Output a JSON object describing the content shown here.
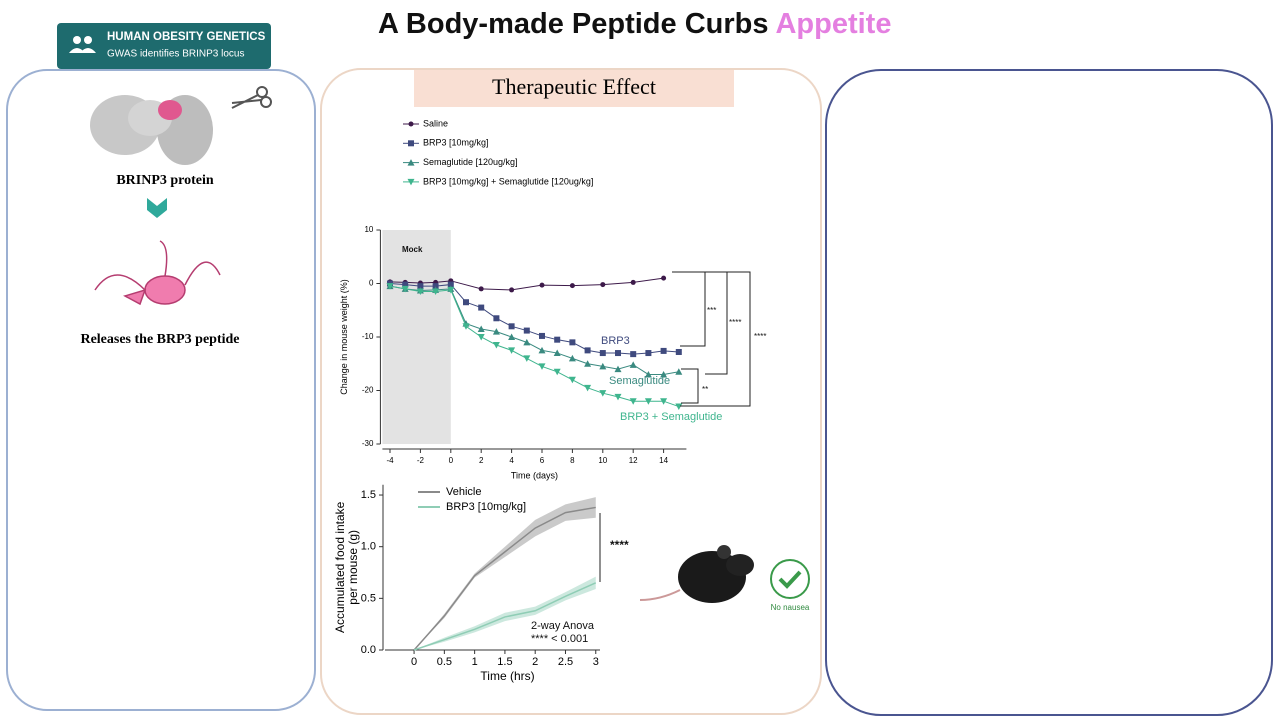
{
  "header": {
    "title": "A Body-made Peptide Curbs",
    "title_highlight": "Appetite"
  },
  "badge": {
    "title": "HUMAN OBESITY GENETICS",
    "subtitle": "GWAS identifies BRINP3 locus"
  },
  "left_panel": {
    "protein_label": "BRINP3 protein",
    "peptide_label": "Releases the BRP3 peptide"
  },
  "middle_panel": {
    "title": "Therapeutic Effect",
    "side_note": "No nausea"
  },
  "chart_data": [
    {
      "type": "line",
      "x_label": "Time (days)",
      "y_label": "Change in mouse weight (%)",
      "xlim": [
        -4.5,
        15.5
      ],
      "ylim": [
        -30,
        10
      ],
      "xticks": [
        -4,
        -2,
        0,
        2,
        4,
        6,
        8,
        10,
        12,
        14
      ],
      "yticks": [
        10,
        0,
        -10,
        -20,
        -30
      ],
      "shaded_range": [
        -4.5,
        0
      ],
      "series": [
        {
          "name": "Saline",
          "color": "#3d1a4a",
          "marker": "circle",
          "x": [
            -4,
            -3,
            -2,
            -1,
            0,
            2,
            4,
            6,
            8,
            10,
            12,
            14
          ],
          "values": [
            0.3,
            0.2,
            0.1,
            0.2,
            0.5,
            -1,
            -1.2,
            -0.3,
            -0.4,
            -0.2,
            0.2,
            1
          ]
        },
        {
          "name": "BRP3 [10mg/kg]",
          "color": "#3f4a7e",
          "marker": "square",
          "x": [
            -4,
            -3,
            -2,
            -1,
            0,
            1,
            2,
            3,
            4,
            5,
            6,
            7,
            8,
            9,
            10,
            11,
            12,
            13,
            14,
            15
          ],
          "values": [
            0,
            -0.2,
            -0.5,
            -0.5,
            -0.2,
            -3.5,
            -4.5,
            -6.5,
            -8,
            -8.8,
            -9.8,
            -10.5,
            -11,
            -12.5,
            -13,
            -13,
            -13.2,
            -13,
            -12.6,
            -12.8
          ]
        },
        {
          "name": "Semaglutide [120ug/kg]",
          "color": "#3a8a80",
          "marker": "triangle",
          "x": [
            -4,
            -3,
            -2,
            -1,
            0,
            1,
            2,
            3,
            4,
            5,
            6,
            7,
            8,
            9,
            10,
            11,
            12,
            13,
            14,
            15
          ],
          "values": [
            -0.5,
            -1,
            -1.3,
            -1.2,
            -1,
            -7.5,
            -8.5,
            -9,
            -10,
            -11,
            -12.5,
            -13,
            -14,
            -15,
            -15.5,
            -16,
            -15.2,
            -17,
            -17,
            -16.5
          ]
        },
        {
          "name": "BRP3 [10mg/kg] + Semaglutide [120ug/kg]",
          "color": "#3fb58e",
          "marker": "triangle-down",
          "x": [
            -4,
            -3,
            -2,
            -1,
            0,
            1,
            2,
            3,
            4,
            5,
            6,
            7,
            8,
            9,
            10,
            11,
            12,
            13,
            14,
            15
          ],
          "values": [
            -0.5,
            -1,
            -1.5,
            -1.5,
            -1.2,
            -8,
            -10,
            -11.5,
            -12.5,
            -14,
            -15.5,
            -16.5,
            -18,
            -19.5,
            -20.5,
            -21.2,
            -22,
            -22,
            -22,
            -23
          ]
        }
      ],
      "annotations": [
        "Mock",
        "BRP3",
        "Semaglutide",
        "BRP3 + Semaglutide",
        "***",
        "****",
        "****",
        "**"
      ]
    },
    {
      "type": "line",
      "x_label": "Time (hrs)",
      "y_label": [
        "Accumulated food intake",
        "per mouse (g)"
      ],
      "xlim": [
        -0.48,
        3.07
      ],
      "ylim": [
        0,
        1.6
      ],
      "xticks": [
        0,
        0.5,
        1,
        1.5,
        2,
        2.5,
        3
      ],
      "yticks": [
        {
          "value": 0,
          "label": "0.0"
        },
        0.5,
        {
          "value": 1,
          "label": "1.0"
        },
        1.5
      ],
      "x": [
        0,
        0.5,
        1,
        1.5,
        2,
        2.5,
        3
      ],
      "series": [
        {
          "name": "Vehicle",
          "color": "#8a8a8a",
          "values": [
            0,
            0.33,
            0.72,
            0.95,
            1.18,
            1.33,
            1.38
          ],
          "errors": [
            0,
            0.02,
            0.02,
            0.05,
            0.08,
            0.08,
            0.1
          ]
        },
        {
          "name": "BRP3 [10mg/kg]",
          "color": "#8fcdb5",
          "values": [
            0,
            0.1,
            0.2,
            0.32,
            0.38,
            0.52,
            0.65
          ],
          "errors": [
            0,
            0.02,
            0.03,
            0.04,
            0.04,
            0.04,
            0.06
          ]
        }
      ],
      "annotations": [
        "****",
        "2-way Anova",
        "**** < 0.001"
      ]
    }
  ]
}
